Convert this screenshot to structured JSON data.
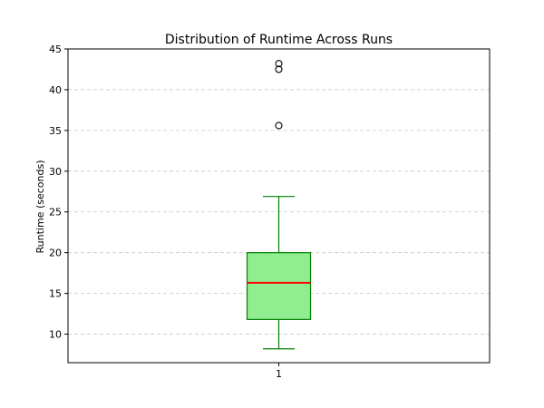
{
  "chart_data": {
    "type": "box",
    "title": "Distribution of Runtime Across Runs",
    "xlabel": "",
    "ylabel": "Runtime (seconds)",
    "ylim": [
      6.5,
      45
    ],
    "yticks": [
      10,
      15,
      20,
      25,
      30,
      35,
      40,
      45
    ],
    "categories": [
      "1"
    ],
    "grid": "y-dashed",
    "boxes": [
      {
        "category": "1",
        "whisker_low": 8.2,
        "q1": 11.8,
        "median": 16.3,
        "q3": 20.0,
        "whisker_high": 26.9,
        "outliers": [
          35.6,
          42.5,
          43.2
        ]
      }
    ],
    "colors": {
      "box_fill": "#90ee90",
      "box_edge": "#008000",
      "median": "#ff0000",
      "grid": "#c8c8c8"
    }
  }
}
